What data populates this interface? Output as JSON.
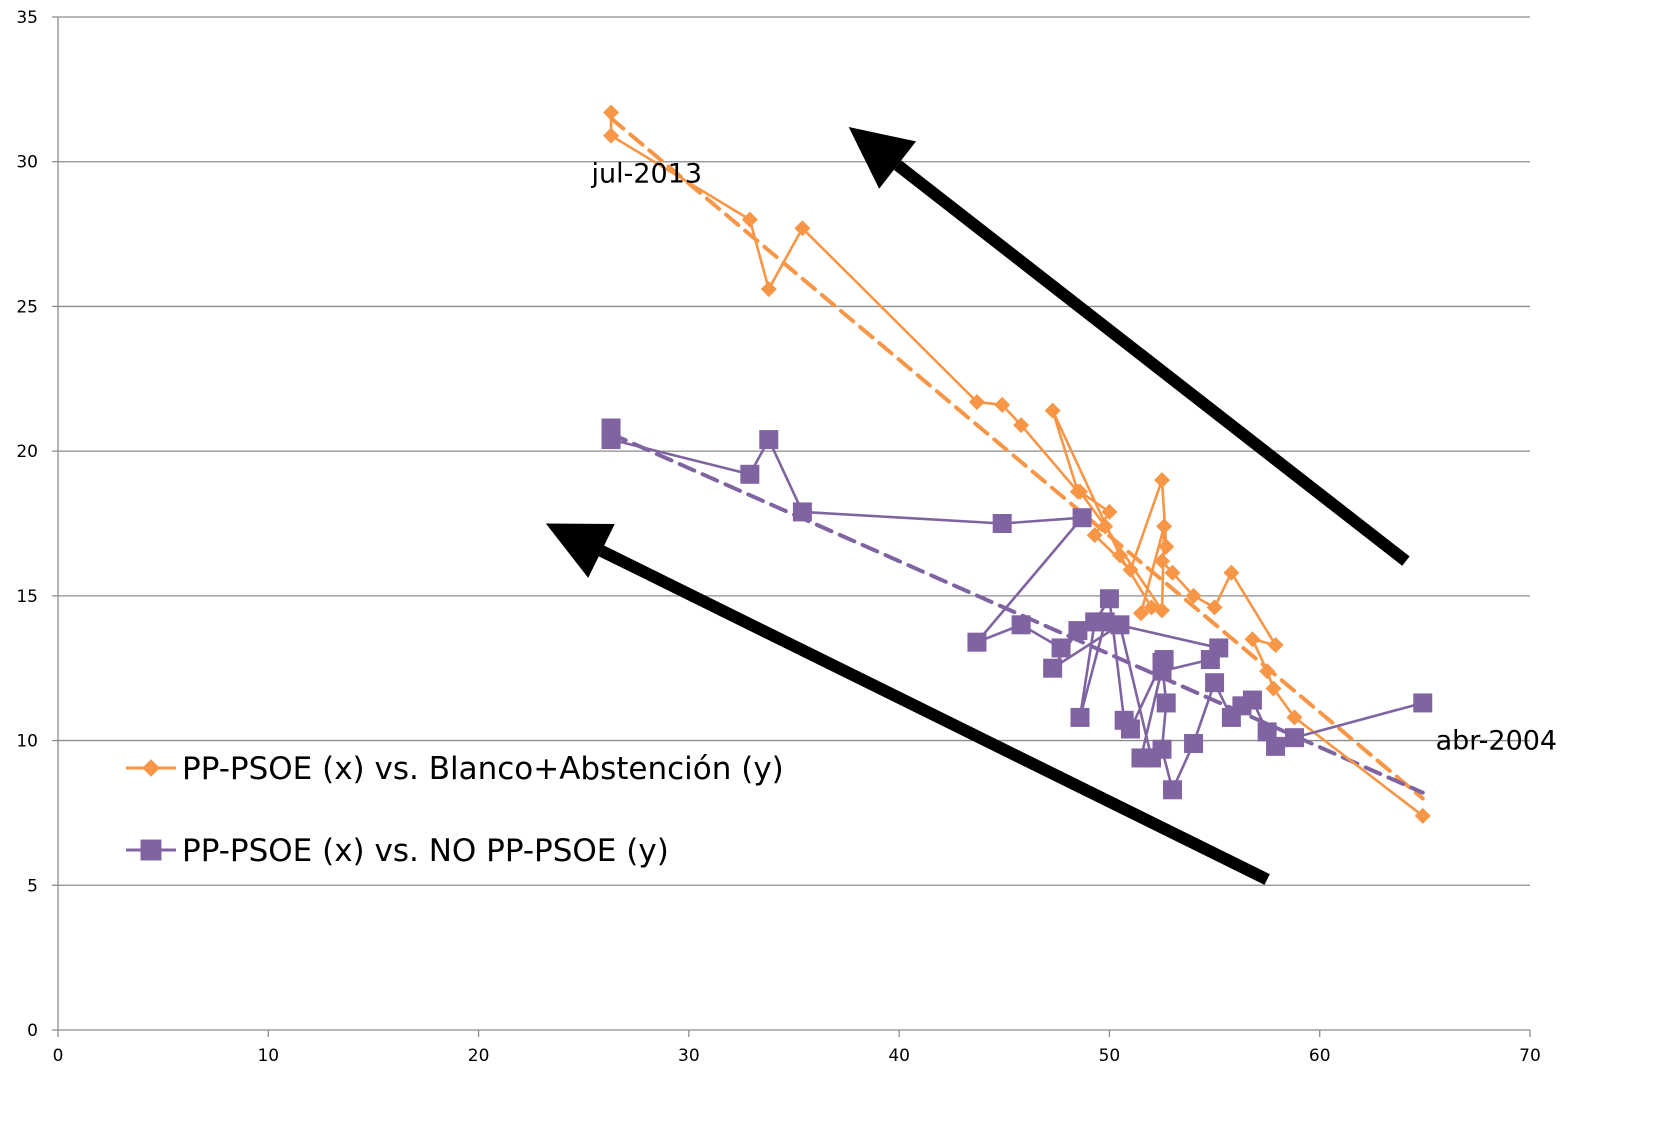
{
  "chart_data": {
    "type": "scatter",
    "title": "",
    "xlabel": "",
    "ylabel": "",
    "xlim": [
      0,
      70
    ],
    "ylim": [
      0,
      35
    ],
    "x_ticks": [
      "0",
      "10",
      "20",
      "30",
      "40",
      "50",
      "60",
      "70"
    ],
    "y_ticks": [
      "0",
      "5",
      "10",
      "15",
      "20",
      "25",
      "30",
      "35"
    ],
    "grid": "horizontal",
    "legend_position": "bottom-left",
    "series": [
      {
        "name": "PP-PSOE (x) vs. Blanco+Abstención (y)",
        "color": "#f79646",
        "marker": "diamond",
        "x": [
          64.9,
          58.8,
          57.8,
          57.5,
          56.8,
          57.9,
          55.8,
          55.0,
          54.0,
          53.0,
          52.5,
          52.7,
          52.5,
          51.0,
          49.3,
          50.0,
          48.6,
          49.8,
          52.5,
          52.6,
          51.5,
          52.0,
          50.5,
          47.3,
          48.5,
          45.8,
          44.9,
          43.7,
          35.4,
          33.8,
          32.9,
          26.3,
          26.3
        ],
        "y": [
          7.4,
          10.8,
          11.8,
          12.4,
          13.5,
          13.3,
          15.8,
          14.6,
          15.0,
          15.8,
          16.2,
          16.7,
          19.0,
          15.9,
          17.1,
          17.9,
          18.6,
          17.4,
          14.5,
          17.4,
          14.4,
          14.6,
          16.4,
          21.4,
          18.6,
          20.9,
          21.6,
          21.7,
          27.7,
          25.6,
          28.0,
          30.9,
          31.7
        ],
        "trend": {
          "x": [
            26.3,
            64.9
          ],
          "y": [
            31.5,
            8.0
          ]
        }
      },
      {
        "name": "PP-PSOE (x) vs. NO PP-PSOE (y)",
        "color": "#8064a2",
        "marker": "square",
        "x": [
          64.9,
          58.8,
          57.9,
          57.5,
          56.8,
          56.3,
          55.8,
          55.0,
          54.0,
          53.0,
          52.5,
          52.7,
          52.5,
          51.0,
          50.7,
          50.0,
          49.3,
          48.6,
          49.8,
          55.2,
          54.8,
          52.5,
          52.6,
          51.5,
          52.0,
          50.5,
          47.3,
          48.5,
          47.7,
          45.8,
          43.7,
          48.7,
          44.9,
          35.4,
          33.8,
          32.9,
          26.3,
          26.3
        ],
        "y": [
          11.3,
          10.1,
          9.8,
          10.3,
          11.4,
          11.2,
          10.8,
          12.0,
          9.9,
          8.3,
          9.7,
          11.3,
          12.7,
          10.4,
          10.7,
          14.9,
          14.1,
          10.8,
          14.1,
          13.2,
          12.8,
          12.4,
          12.8,
          9.4,
          9.4,
          14.0,
          12.5,
          13.8,
          13.2,
          14.0,
          13.4,
          17.7,
          17.5,
          17.9,
          20.4,
          19.2,
          20.4,
          20.8
        ],
        "trend": {
          "x": [
            26.3,
            64.9
          ],
          "y": [
            20.6,
            8.2
          ]
        }
      }
    ],
    "annotations": [
      {
        "text": "jul-2013",
        "x": 28.0,
        "y": 29.6
      },
      {
        "text": "abr-2004",
        "x": 68.4,
        "y": 10.0
      }
    ],
    "arrows": [
      {
        "from": {
          "x": 64.1,
          "y": 16.2
        },
        "to": {
          "x": 37.6,
          "y": 31.2
        }
      },
      {
        "from": {
          "x": 57.5,
          "y": 5.2
        },
        "to": {
          "x": 23.2,
          "y": 17.5
        }
      }
    ]
  }
}
